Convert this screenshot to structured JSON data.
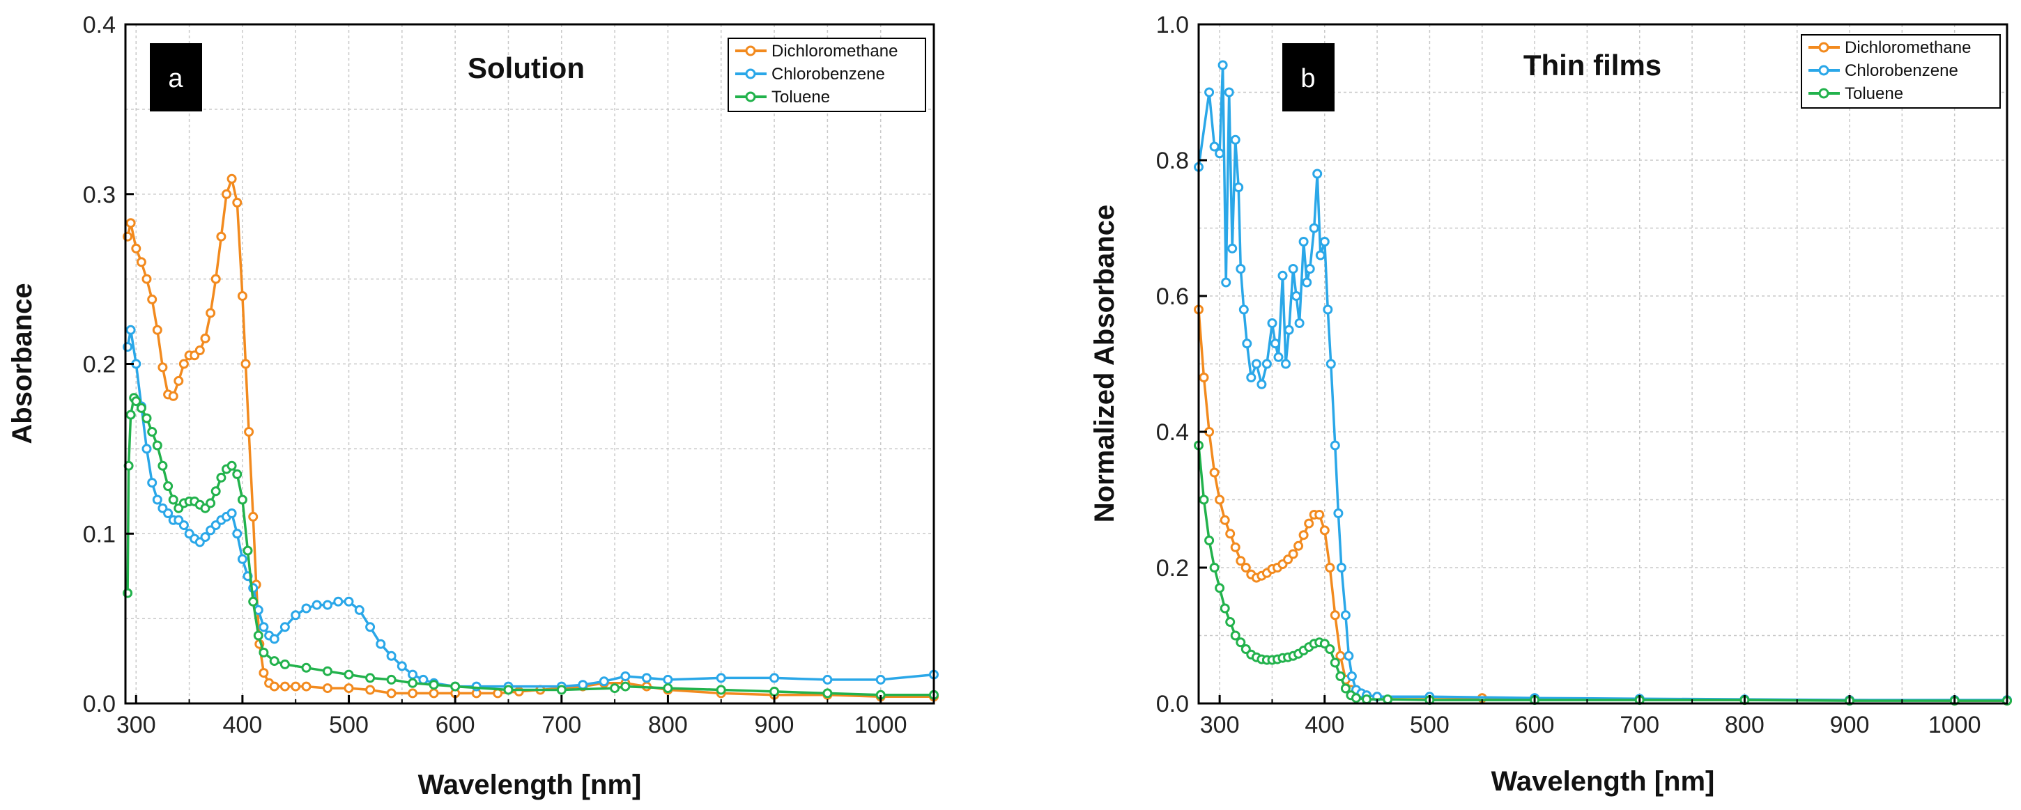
{
  "chart_data": [
    {
      "type": "line",
      "panel_label": "a",
      "title": "Solution",
      "xlabel": "Wavelength [nm]",
      "ylabel": "Absorbance",
      "xlim": [
        290,
        1050
      ],
      "ylim": [
        0,
        0.4
      ],
      "xticks": [
        300,
        400,
        500,
        600,
        700,
        800,
        900,
        1000
      ],
      "xtick_labels": [
        "300",
        "400",
        "500",
        "600",
        "700",
        "800",
        "900",
        "1000"
      ],
      "yticks": [
        0,
        0.1,
        0.2,
        0.3,
        0.4
      ],
      "ytick_labels": [
        "0.0",
        "0.1",
        "0.2",
        "0.3",
        "0.4"
      ],
      "grid": true,
      "legend_position": "top-right",
      "legend": [
        "Dichloromethane",
        "Chlorobenzene",
        "Toluene"
      ],
      "series": [
        {
          "name": "Dichloromethane",
          "color": "#f28a1e",
          "x": [
            292,
            295,
            300,
            305,
            310,
            315,
            320,
            325,
            330,
            335,
            340,
            345,
            350,
            355,
            360,
            365,
            370,
            375,
            380,
            385,
            390,
            395,
            400,
            403,
            406,
            410,
            413,
            416,
            420,
            425,
            430,
            440,
            450,
            460,
            480,
            500,
            520,
            540,
            560,
            580,
            600,
            620,
            640,
            660,
            680,
            700,
            720,
            740,
            760,
            780,
            800,
            850,
            900,
            950,
            1000,
            1050
          ],
          "y": [
            0.275,
            0.283,
            0.268,
            0.26,
            0.25,
            0.238,
            0.22,
            0.198,
            0.182,
            0.181,
            0.19,
            0.2,
            0.205,
            0.205,
            0.208,
            0.215,
            0.23,
            0.25,
            0.275,
            0.3,
            0.309,
            0.295,
            0.24,
            0.2,
            0.16,
            0.11,
            0.07,
            0.035,
            0.018,
            0.012,
            0.01,
            0.01,
            0.01,
            0.01,
            0.009,
            0.009,
            0.008,
            0.006,
            0.006,
            0.006,
            0.006,
            0.006,
            0.006,
            0.007,
            0.008,
            0.009,
            0.01,
            0.012,
            0.012,
            0.01,
            0.008,
            0.006,
            0.005,
            0.005,
            0.004,
            0.004
          ]
        },
        {
          "name": "Chlorobenzene",
          "color": "#2aa7e8",
          "x": [
            292,
            295,
            300,
            305,
            310,
            315,
            320,
            325,
            330,
            335,
            340,
            345,
            350,
            355,
            360,
            365,
            370,
            375,
            380,
            385,
            390,
            395,
            400,
            405,
            410,
            415,
            420,
            425,
            430,
            440,
            450,
            460,
            470,
            480,
            490,
            500,
            510,
            520,
            530,
            540,
            550,
            560,
            570,
            580,
            600,
            620,
            650,
            700,
            720,
            740,
            760,
            780,
            800,
            850,
            900,
            950,
            1000,
            1050
          ],
          "y": [
            0.21,
            0.22,
            0.2,
            0.175,
            0.15,
            0.13,
            0.12,
            0.115,
            0.112,
            0.108,
            0.108,
            0.105,
            0.1,
            0.097,
            0.095,
            0.098,
            0.102,
            0.105,
            0.108,
            0.11,
            0.112,
            0.1,
            0.085,
            0.075,
            0.068,
            0.055,
            0.045,
            0.04,
            0.038,
            0.045,
            0.052,
            0.056,
            0.058,
            0.058,
            0.06,
            0.06,
            0.055,
            0.045,
            0.035,
            0.028,
            0.022,
            0.017,
            0.014,
            0.012,
            0.01,
            0.01,
            0.01,
            0.01,
            0.011,
            0.013,
            0.016,
            0.015,
            0.014,
            0.015,
            0.015,
            0.014,
            0.014,
            0.017
          ]
        },
        {
          "name": "Toluene",
          "color": "#22b24c",
          "x": [
            292,
            293,
            295,
            298,
            300,
            305,
            310,
            315,
            320,
            325,
            330,
            335,
            340,
            345,
            350,
            355,
            360,
            365,
            370,
            375,
            380,
            385,
            390,
            395,
            400,
            405,
            410,
            415,
            420,
            430,
            440,
            460,
            480,
            500,
            520,
            540,
            560,
            580,
            600,
            650,
            700,
            750,
            760,
            800,
            850,
            900,
            950,
            1000,
            1050
          ],
          "y": [
            0.065,
            0.14,
            0.17,
            0.18,
            0.178,
            0.174,
            0.168,
            0.16,
            0.152,
            0.14,
            0.128,
            0.12,
            0.115,
            0.118,
            0.119,
            0.119,
            0.117,
            0.115,
            0.118,
            0.125,
            0.133,
            0.138,
            0.14,
            0.135,
            0.12,
            0.09,
            0.06,
            0.04,
            0.03,
            0.025,
            0.023,
            0.021,
            0.019,
            0.017,
            0.015,
            0.014,
            0.012,
            0.011,
            0.01,
            0.008,
            0.008,
            0.009,
            0.01,
            0.009,
            0.008,
            0.007,
            0.006,
            0.005,
            0.005
          ]
        }
      ]
    },
    {
      "type": "line",
      "panel_label": "b",
      "title": "Thin films",
      "xlabel": "Wavelength [nm]",
      "ylabel": "Normalized Absorbance",
      "xlim": [
        280,
        1050
      ],
      "ylim": [
        0,
        1.0
      ],
      "xticks": [
        300,
        400,
        500,
        600,
        700,
        800,
        900,
        1000
      ],
      "xtick_labels": [
        "300",
        "400",
        "500",
        "600",
        "700",
        "800",
        "900",
        "1000"
      ],
      "yticks": [
        0,
        0.2,
        0.4,
        0.6,
        0.8,
        1.0
      ],
      "ytick_labels": [
        "0.0",
        "0.2",
        "0.4",
        "0.6",
        "0.8",
        "1.0"
      ],
      "grid": true,
      "legend_position": "top-right",
      "legend": [
        "Dichloromethane",
        "Chlorobenzene",
        "Toluene"
      ],
      "series": [
        {
          "name": "Dichloromethane",
          "color": "#f28a1e",
          "x": [
            280,
            285,
            290,
            295,
            300,
            305,
            310,
            315,
            320,
            325,
            330,
            335,
            340,
            345,
            350,
            355,
            360,
            365,
            370,
            375,
            380,
            385,
            390,
            395,
            400,
            405,
            410,
            415,
            420,
            425,
            430,
            440,
            450,
            500,
            550,
            600,
            700,
            800,
            900,
            1000,
            1050
          ],
          "y": [
            0.58,
            0.48,
            0.4,
            0.34,
            0.3,
            0.27,
            0.25,
            0.23,
            0.21,
            0.2,
            0.19,
            0.185,
            0.188,
            0.192,
            0.198,
            0.2,
            0.205,
            0.212,
            0.22,
            0.232,
            0.248,
            0.265,
            0.278,
            0.278,
            0.255,
            0.2,
            0.13,
            0.07,
            0.035,
            0.02,
            0.015,
            0.012,
            0.01,
            0.009,
            0.008,
            0.007,
            0.006,
            0.005,
            0.005,
            0.004,
            0.004
          ]
        },
        {
          "name": "Chlorobenzene",
          "color": "#2aa7e8",
          "x": [
            280,
            290,
            295,
            300,
            303,
            306,
            309,
            312,
            315,
            318,
            320,
            323,
            326,
            330,
            335,
            340,
            345,
            350,
            353,
            356,
            360,
            363,
            366,
            370,
            373,
            376,
            380,
            383,
            386,
            390,
            393,
            396,
            400,
            403,
            406,
            410,
            413,
            416,
            420,
            423,
            426,
            430,
            435,
            440,
            450,
            500,
            600,
            700,
            800,
            900,
            1000,
            1050
          ],
          "y": [
            0.79,
            0.9,
            0.82,
            0.81,
            0.94,
            0.62,
            0.9,
            0.67,
            0.83,
            0.76,
            0.64,
            0.58,
            0.53,
            0.48,
            0.5,
            0.47,
            0.5,
            0.56,
            0.53,
            0.51,
            0.63,
            0.5,
            0.55,
            0.64,
            0.6,
            0.56,
            0.68,
            0.62,
            0.64,
            0.7,
            0.78,
            0.66,
            0.68,
            0.58,
            0.5,
            0.38,
            0.28,
            0.2,
            0.13,
            0.07,
            0.04,
            0.02,
            0.015,
            0.012,
            0.01,
            0.01,
            0.008,
            0.007,
            0.006,
            0.005,
            0.005,
            0.005
          ]
        },
        {
          "name": "Toluene",
          "color": "#22b24c",
          "x": [
            280,
            285,
            290,
            295,
            300,
            305,
            310,
            315,
            320,
            325,
            330,
            335,
            340,
            345,
            350,
            355,
            360,
            365,
            370,
            375,
            380,
            385,
            390,
            395,
            400,
            405,
            410,
            415,
            420,
            425,
            430,
            440,
            460,
            500,
            600,
            700,
            800,
            900,
            1000,
            1050
          ],
          "y": [
            0.38,
            0.3,
            0.24,
            0.2,
            0.17,
            0.14,
            0.12,
            0.1,
            0.09,
            0.08,
            0.072,
            0.068,
            0.065,
            0.064,
            0.064,
            0.065,
            0.067,
            0.068,
            0.07,
            0.073,
            0.078,
            0.083,
            0.088,
            0.09,
            0.088,
            0.08,
            0.06,
            0.04,
            0.022,
            0.012,
            0.008,
            0.006,
            0.006,
            0.005,
            0.005,
            0.005,
            0.005,
            0.004,
            0.004,
            0.004
          ]
        }
      ]
    }
  ]
}
